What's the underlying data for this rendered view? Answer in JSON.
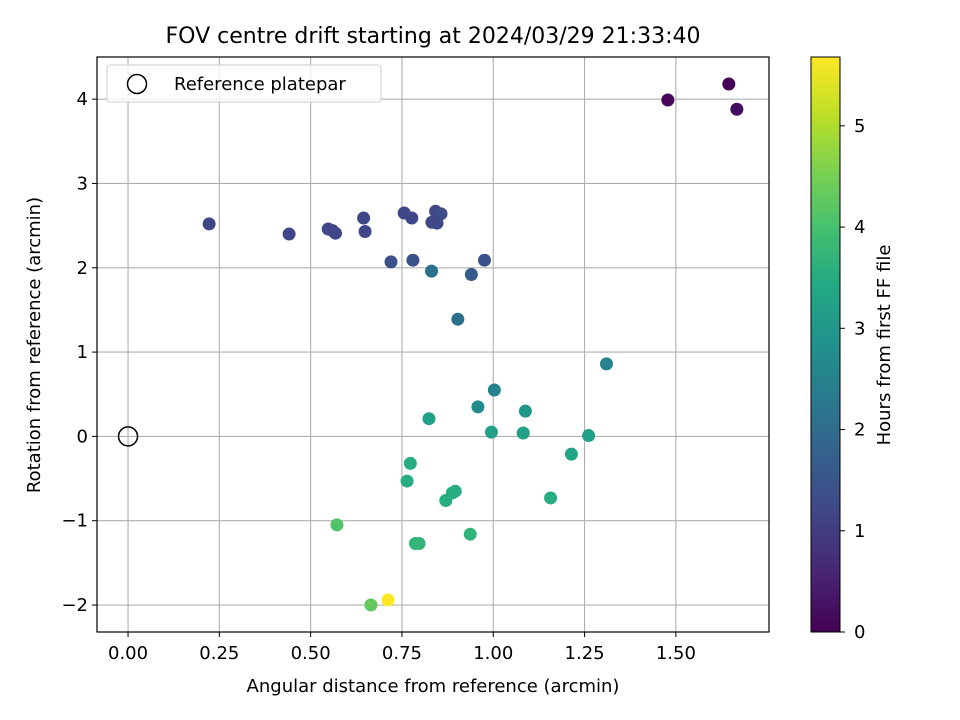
{
  "chart_data": {
    "type": "scatter",
    "title": "FOV centre drift starting at 2024/03/29 21:33:40",
    "xlabel": "Angular distance from reference (arcmin)",
    "ylabel": "Rotation from reference (arcmin)",
    "xlim": [
      -0.085,
      1.755
    ],
    "ylim": [
      -2.32,
      4.5
    ],
    "xticks": [
      0.0,
      0.25,
      0.5,
      0.75,
      1.0,
      1.25,
      1.5
    ],
    "xtick_labels": [
      "0.00",
      "0.25",
      "0.50",
      "0.75",
      "1.00",
      "1.25",
      "1.50"
    ],
    "yticks": [
      -2,
      -1,
      0,
      1,
      2,
      3,
      4
    ],
    "ytick_labels": [
      "−2",
      "−1",
      "0",
      "1",
      "2",
      "3",
      "4"
    ],
    "grid": true,
    "legend": {
      "position": "top-left",
      "entries": [
        "Reference platepar"
      ]
    },
    "reference_point": {
      "x": 0.0,
      "y": 0.0,
      "label": "Reference platepar"
    },
    "colorbar": {
      "label": "Hours from first FF file",
      "colormap": "viridis",
      "range": [
        0,
        5.68
      ],
      "ticks": [
        0,
        1,
        2,
        3,
        4,
        5
      ],
      "tick_labels": [
        "0",
        "1",
        "2",
        "3",
        "4",
        "5"
      ]
    },
    "points": [
      {
        "x": 1.645,
        "y": 4.18,
        "c": 0.05
      },
      {
        "x": 1.478,
        "y": 3.99,
        "c": 0.1
      },
      {
        "x": 1.667,
        "y": 3.88,
        "c": 0.2
      },
      {
        "x": 0.222,
        "y": 2.52,
        "c": 1.2
      },
      {
        "x": 0.441,
        "y": 2.4,
        "c": 1.2
      },
      {
        "x": 0.548,
        "y": 2.46,
        "c": 1.2
      },
      {
        "x": 0.56,
        "y": 2.44,
        "c": 1.2
      },
      {
        "x": 0.568,
        "y": 2.41,
        "c": 1.2
      },
      {
        "x": 0.645,
        "y": 2.59,
        "c": 1.2
      },
      {
        "x": 0.649,
        "y": 2.43,
        "c": 1.2
      },
      {
        "x": 0.756,
        "y": 2.65,
        "c": 1.2
      },
      {
        "x": 0.777,
        "y": 2.59,
        "c": 1.2
      },
      {
        "x": 0.832,
        "y": 2.54,
        "c": 1.25
      },
      {
        "x": 0.842,
        "y": 2.67,
        "c": 1.2
      },
      {
        "x": 0.846,
        "y": 2.53,
        "c": 1.25
      },
      {
        "x": 0.857,
        "y": 2.64,
        "c": 1.3
      },
      {
        "x": 0.72,
        "y": 2.07,
        "c": 1.4
      },
      {
        "x": 0.78,
        "y": 2.09,
        "c": 1.4
      },
      {
        "x": 0.976,
        "y": 2.09,
        "c": 1.4
      },
      {
        "x": 0.831,
        "y": 1.96,
        "c": 2.1
      },
      {
        "x": 0.94,
        "y": 1.92,
        "c": 1.6
      },
      {
        "x": 0.903,
        "y": 1.39,
        "c": 2.1
      },
      {
        "x": 1.31,
        "y": 0.86,
        "c": 2.5
      },
      {
        "x": 1.003,
        "y": 0.55,
        "c": 2.5
      },
      {
        "x": 0.958,
        "y": 0.35,
        "c": 2.7
      },
      {
        "x": 1.088,
        "y": 0.3,
        "c": 3.0
      },
      {
        "x": 0.824,
        "y": 0.21,
        "c": 3.2
      },
      {
        "x": 0.995,
        "y": 0.05,
        "c": 3.2
      },
      {
        "x": 1.082,
        "y": 0.04,
        "c": 3.2
      },
      {
        "x": 1.261,
        "y": 0.01,
        "c": 3.2
      },
      {
        "x": 1.214,
        "y": -0.21,
        "c": 3.3
      },
      {
        "x": 0.773,
        "y": -0.32,
        "c": 3.5
      },
      {
        "x": 0.764,
        "y": -0.53,
        "c": 3.5
      },
      {
        "x": 0.896,
        "y": -0.65,
        "c": 3.5
      },
      {
        "x": 0.888,
        "y": -0.67,
        "c": 3.5
      },
      {
        "x": 0.87,
        "y": -0.76,
        "c": 3.5
      },
      {
        "x": 1.157,
        "y": -0.73,
        "c": 3.5
      },
      {
        "x": 0.572,
        "y": -1.05,
        "c": 4.1
      },
      {
        "x": 0.787,
        "y": -1.27,
        "c": 3.7
      },
      {
        "x": 0.797,
        "y": -1.27,
        "c": 3.7
      },
      {
        "x": 0.937,
        "y": -1.16,
        "c": 3.7
      },
      {
        "x": 0.665,
        "y": -2.0,
        "c": 4.3
      },
      {
        "x": 0.712,
        "y": -1.94,
        "c": 5.68
      }
    ]
  }
}
